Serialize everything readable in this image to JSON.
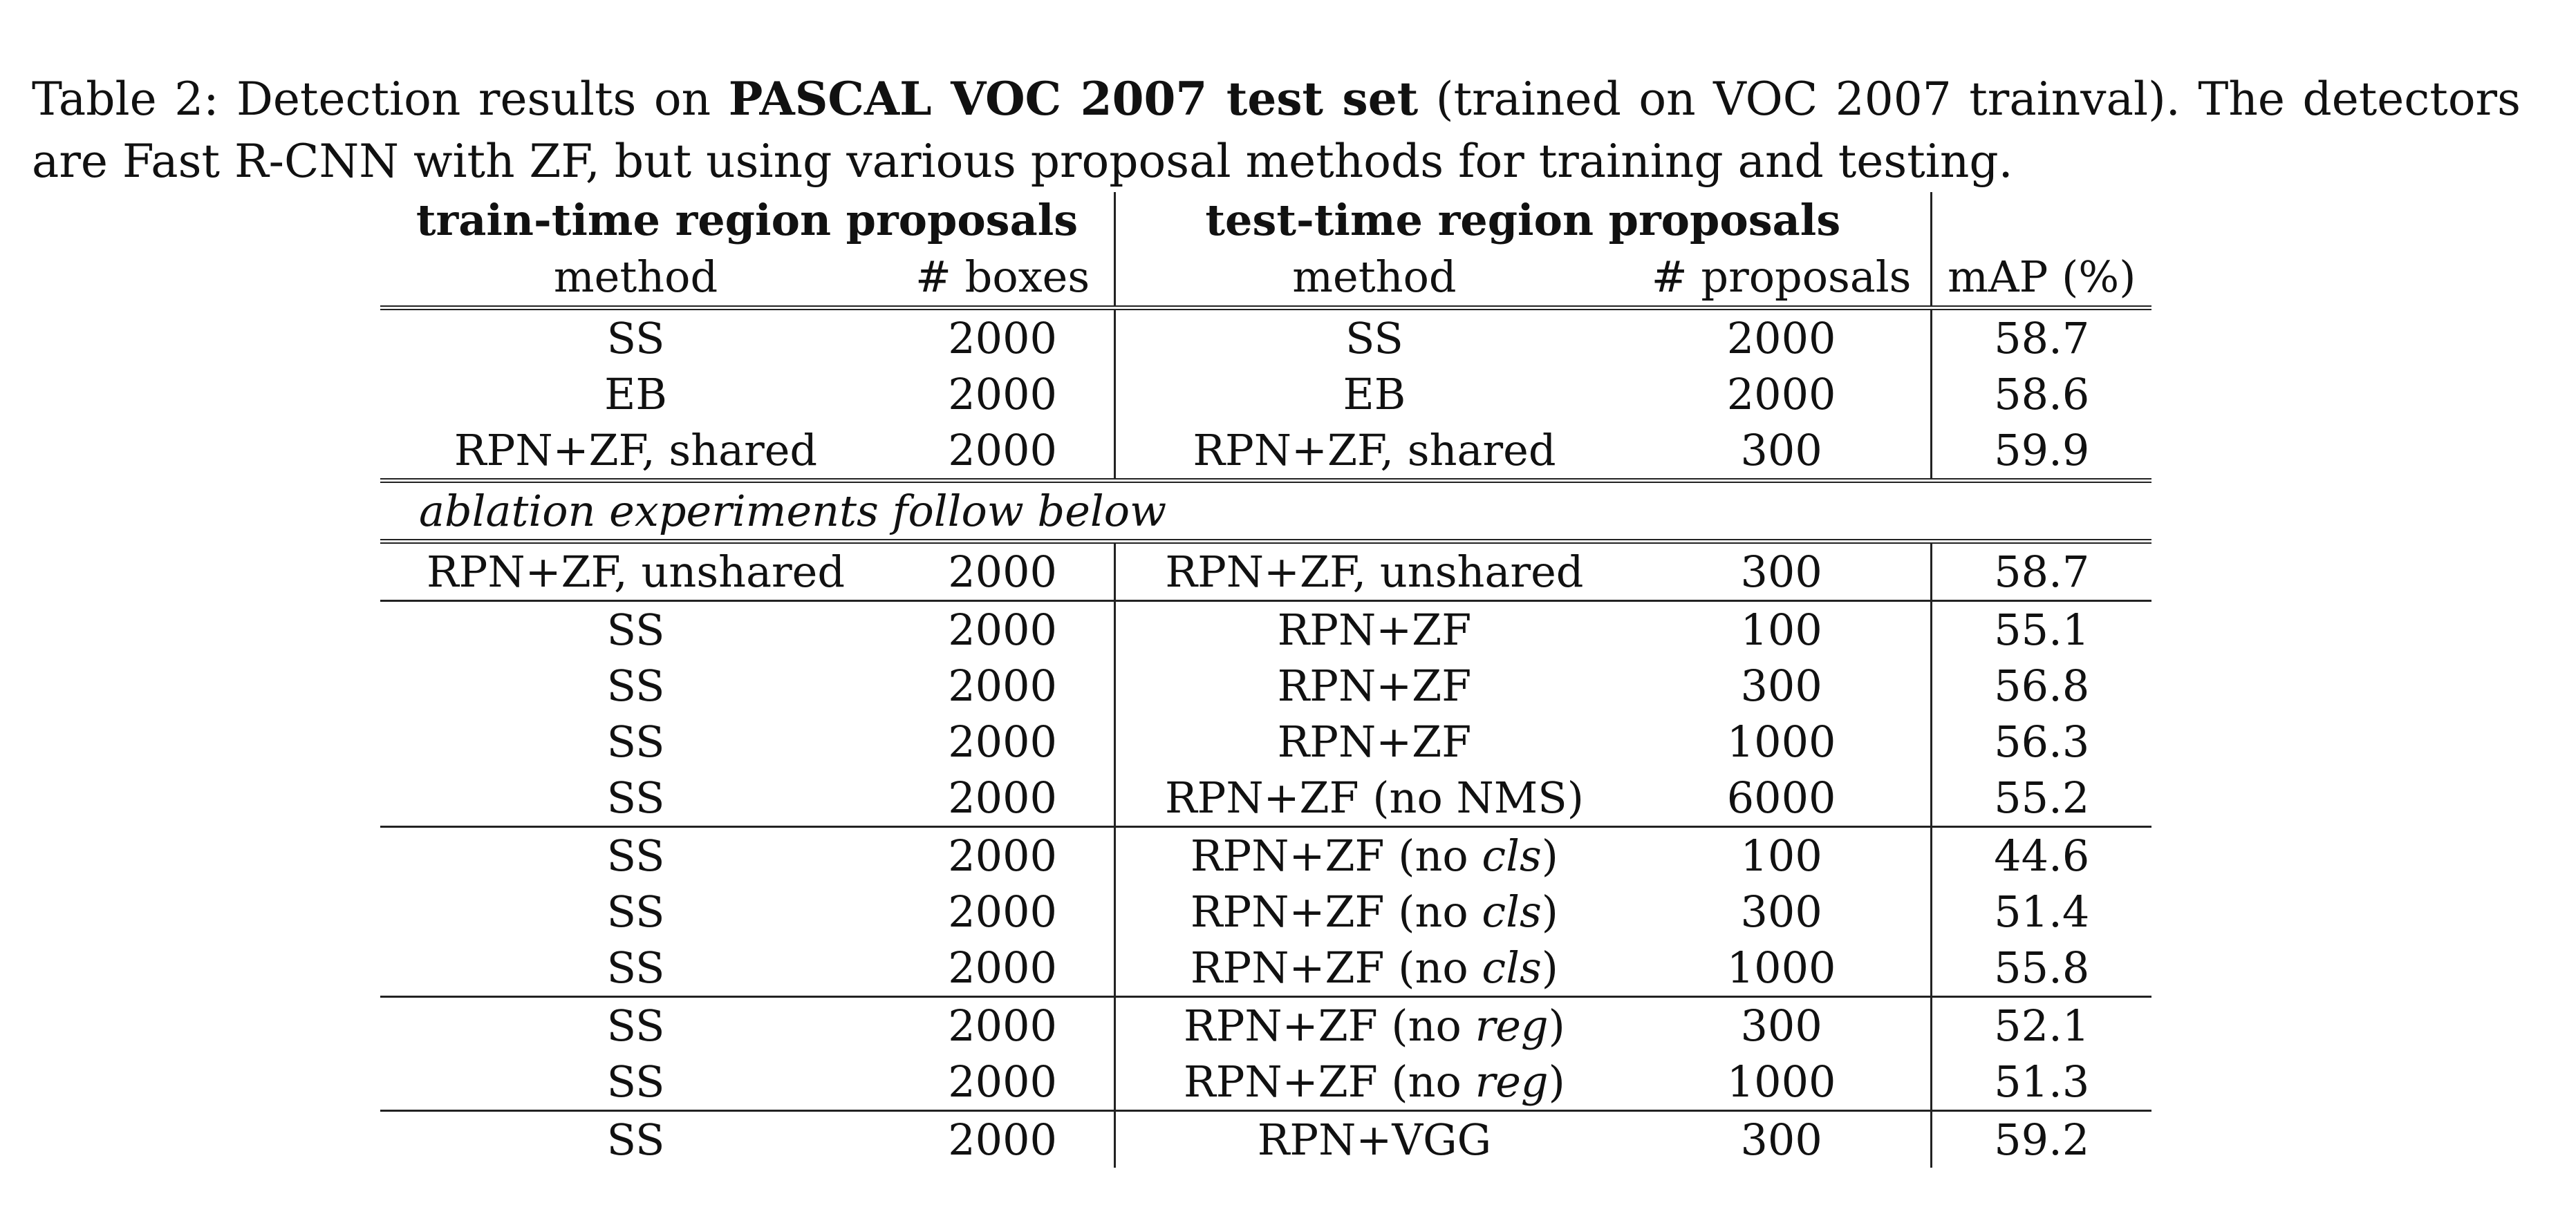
{
  "caption": {
    "prefix": "Table 2: Detection results on ",
    "bold": "PASCAL VOC 2007 test set",
    "suffix": " (trained on VOC 2007 trainval). The detectors are Fast R-CNN with ZF, but using various proposal methods for training and testing."
  },
  "headers": {
    "train_group": "train-time region proposals",
    "test_group": "test-time region proposals",
    "train_method": "method",
    "train_boxes": "# boxes",
    "test_method": "method",
    "test_proposals": "# proposals",
    "map": "mAP (%)"
  },
  "ablation_note": "ablation experiments follow below",
  "rows_main": [
    {
      "train_method": "SS",
      "boxes": "2000",
      "test_method": "SS",
      "test_italic": "",
      "test_close": "",
      "proposals": "2000",
      "map": "58.7",
      "bold": false
    },
    {
      "train_method": "EB",
      "boxes": "2000",
      "test_method": "EB",
      "test_italic": "",
      "test_close": "",
      "proposals": "2000",
      "map": "58.6",
      "bold": false
    },
    {
      "train_method": "RPN+ZF, shared",
      "boxes": "2000",
      "test_method": "RPN+ZF, shared",
      "test_italic": "",
      "test_close": "",
      "proposals": "300",
      "map": "59.9",
      "bold": true
    }
  ],
  "rows_ablation": [
    {
      "train_method": "RPN+ZF, unshared",
      "boxes": "2000",
      "test_method": "RPN+ZF, unshared",
      "test_italic": "",
      "test_close": "",
      "proposals": "300",
      "map": "58.7"
    },
    {
      "train_method": "SS",
      "boxes": "2000",
      "test_method": "RPN+ZF",
      "test_italic": "",
      "test_close": "",
      "proposals": "100",
      "map": "55.1"
    },
    {
      "train_method": "SS",
      "boxes": "2000",
      "test_method": "RPN+ZF",
      "test_italic": "",
      "test_close": "",
      "proposals": "300",
      "map": "56.8"
    },
    {
      "train_method": "SS",
      "boxes": "2000",
      "test_method": "RPN+ZF",
      "test_italic": "",
      "test_close": "",
      "proposals": "1000",
      "map": "56.3"
    },
    {
      "train_method": "SS",
      "boxes": "2000",
      "test_method": "RPN+ZF (no NMS)",
      "test_italic": "",
      "test_close": "",
      "proposals": "6000",
      "map": "55.2"
    },
    {
      "train_method": "SS",
      "boxes": "2000",
      "test_method": "RPN+ZF (no ",
      "test_italic": "cls",
      "test_close": ")",
      "proposals": "100",
      "map": "44.6"
    },
    {
      "train_method": "SS",
      "boxes": "2000",
      "test_method": "RPN+ZF (no ",
      "test_italic": "cls",
      "test_close": ")",
      "proposals": "300",
      "map": "51.4"
    },
    {
      "train_method": "SS",
      "boxes": "2000",
      "test_method": "RPN+ZF (no ",
      "test_italic": "cls",
      "test_close": ")",
      "proposals": "1000",
      "map": "55.8"
    },
    {
      "train_method": "SS",
      "boxes": "2000",
      "test_method": "RPN+ZF (no ",
      "test_italic": "reg",
      "test_close": ")",
      "proposals": "300",
      "map": "52.1"
    },
    {
      "train_method": "SS",
      "boxes": "2000",
      "test_method": "RPN+ZF (no ",
      "test_italic": "reg",
      "test_close": ")",
      "proposals": "1000",
      "map": "51.3"
    },
    {
      "train_method": "SS",
      "boxes": "2000",
      "test_method": "RPN+VGG",
      "test_italic": "",
      "test_close": "",
      "proposals": "300",
      "map": "59.2"
    }
  ]
}
